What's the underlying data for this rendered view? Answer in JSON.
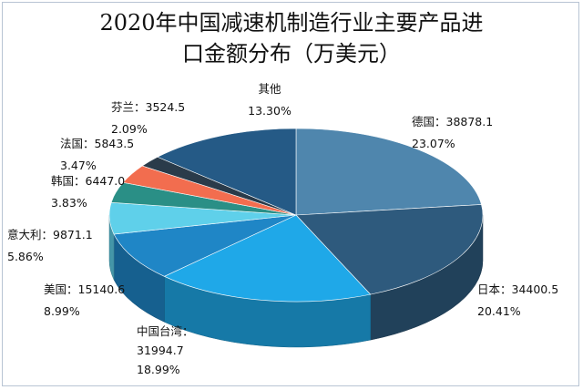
{
  "chart_data": {
    "type": "pie",
    "title_line1": "2020年中国减速机制造行业主要产品进",
    "title_line2": "口金额分布（万美元）",
    "slices": [
      {
        "name": "德国",
        "value": "38878.1",
        "percent": "23.07%",
        "color": "#4f86ad"
      },
      {
        "name": "日本",
        "value": "34400.5",
        "percent": "20.41%",
        "color": "#2e5a7d"
      },
      {
        "name": "中国台湾",
        "value": "31994.7",
        "percent": "18.99%",
        "color": "#1fa8e8"
      },
      {
        "name": "美国",
        "value": "15140.6",
        "percent": "8.99%",
        "color": "#1f86c6"
      },
      {
        "name": "意大利",
        "value": "9871.1",
        "percent": "5.86%",
        "color": "#5fd0ea"
      },
      {
        "name": "韩国",
        "value": "6447.0",
        "percent": "3.83%",
        "color": "#2a8f86"
      },
      {
        "name": "法国",
        "value": "5843.5",
        "percent": "3.47%",
        "color": "#f26d4f"
      },
      {
        "name": "芬兰",
        "value": "3524.5",
        "percent": "2.09%",
        "color": "#2a3b4a"
      },
      {
        "name": "其他",
        "value": "",
        "percent": "13.30%",
        "color": "#255a86"
      }
    ]
  }
}
